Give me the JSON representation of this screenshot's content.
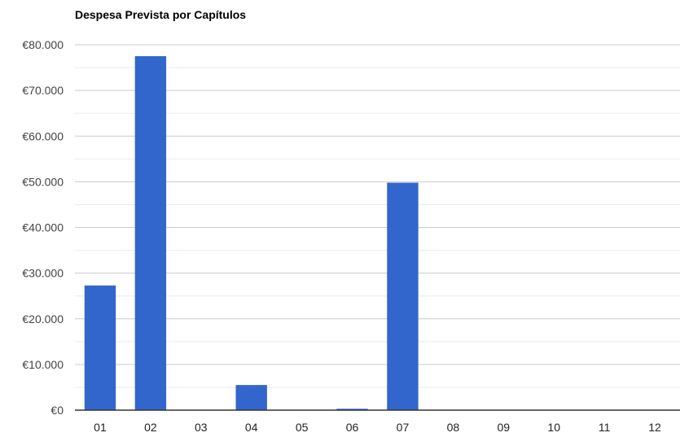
{
  "chart_data": {
    "type": "bar",
    "title": "Despesa Prevista por Capítulos",
    "xlabel": "",
    "ylabel": "",
    "categories": [
      "01",
      "02",
      "03",
      "04",
      "05",
      "06",
      "07",
      "08",
      "09",
      "10",
      "11",
      "12"
    ],
    "values": [
      27300,
      77500,
      0,
      5500,
      0,
      300,
      49800,
      0,
      0,
      0,
      0,
      0
    ],
    "ylim": [
      0,
      80000
    ],
    "yticks": [
      0,
      10000,
      20000,
      30000,
      40000,
      50000,
      60000,
      70000,
      80000
    ],
    "ytick_labels": [
      "€0",
      "€10.000",
      "€20.000",
      "€30.000",
      "€40.000",
      "€50.000",
      "€60.000",
      "€70.000",
      "€80.000"
    ],
    "grid": true,
    "legend": "none",
    "bar_color": "#3366cc",
    "grid_color": "#cccccc",
    "minor_grid_color": "#ebebeb",
    "axis_color": "#333333"
  }
}
